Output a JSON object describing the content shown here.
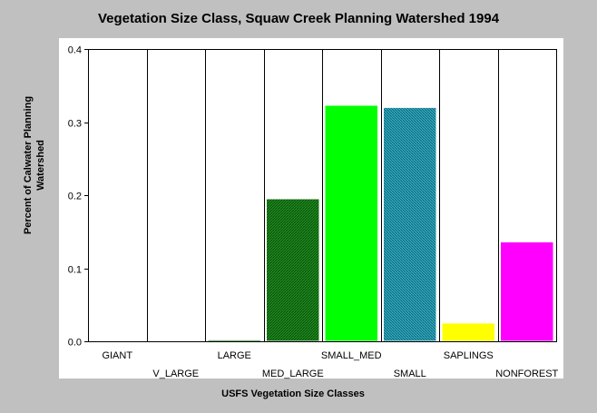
{
  "chart_data": {
    "type": "bar",
    "title": "Vegetation Size Class, Squaw Creek Planning Watershed 1994",
    "xlabel": "USFS Vegetation Size Classes",
    "ylabel": "Percent of Calwater Planning Watershed",
    "ylabel_lines": [
      "Percent of Calwater Planning",
      "Watershed"
    ],
    "ylim": [
      0,
      0.4
    ],
    "yticks": [
      "0.0",
      "0.1",
      "0.2",
      "0.3",
      "0.4"
    ],
    "grid": "vertical",
    "categories": [
      "GIANT",
      "V_LARGE",
      "LARGE",
      "MED_LARGE",
      "SMALL_MED",
      "SMALL",
      "SAPLINGS",
      "NONFOREST"
    ],
    "values": [
      0,
      0,
      0.002,
      0.195,
      0.323,
      0.32,
      0.025,
      0.136
    ],
    "colors": [
      "#008000",
      "#008000",
      "#006400",
      "#1e8c1e",
      "#00ff00",
      "#2aa6b8",
      "#ffff00",
      "#ff00ff"
    ]
  }
}
